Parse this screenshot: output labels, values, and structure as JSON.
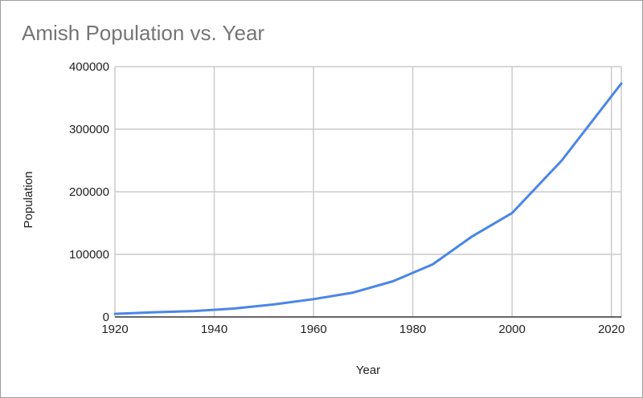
{
  "chart_data": {
    "type": "line",
    "title": "Amish Population vs. Year",
    "xlabel": "Year",
    "ylabel": "Population",
    "xlim": [
      1920,
      2022
    ],
    "ylim": [
      0,
      400000
    ],
    "x_ticks": [
      "1920",
      "1940",
      "1960",
      "1980",
      "2000",
      "2020"
    ],
    "y_ticks": [
      "0",
      "100000",
      "200000",
      "300000",
      "400000"
    ],
    "grid": true,
    "legend": "none",
    "series": [
      {
        "name": "Population",
        "color": "#4a86e8",
        "x": [
          1920,
          1928,
          1936,
          1944,
          1952,
          1960,
          1968,
          1976,
          1984,
          1992,
          2000,
          2010,
          2022
        ],
        "values": [
          5000,
          7500,
          9500,
          13500,
          20000,
          28500,
          39000,
          57000,
          84000,
          129000,
          166000,
          250000,
          373000
        ]
      }
    ]
  }
}
